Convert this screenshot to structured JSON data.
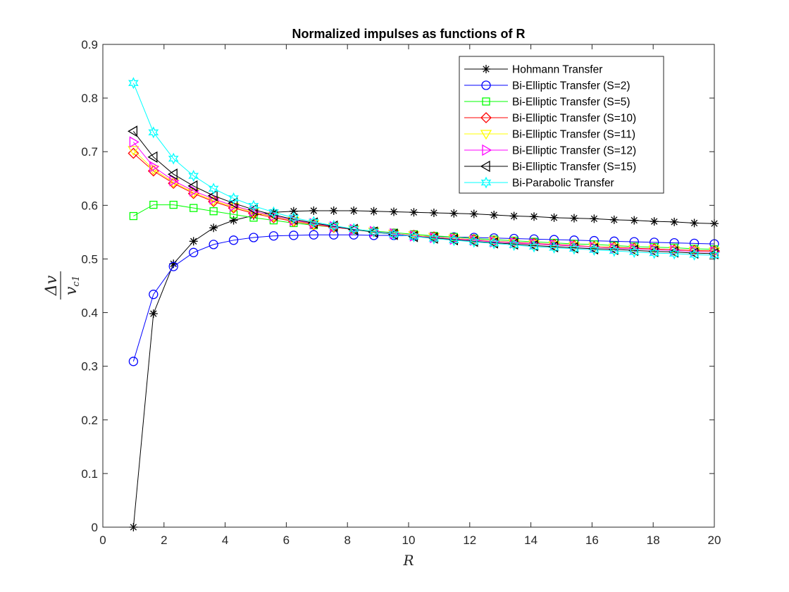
{
  "chart_data": {
    "type": "line",
    "title": "Normalized impulses as functions of R",
    "xlabel": "R",
    "ylabel": {
      "numerator": "Δv",
      "denominator_main": "v",
      "denominator_sub": "c1"
    },
    "xlim": [
      0,
      20
    ],
    "ylim": [
      0,
      0.9
    ],
    "xticks": [
      0,
      2,
      4,
      6,
      8,
      10,
      12,
      14,
      16,
      18,
      20
    ],
    "yticks": [
      0,
      0.1,
      0.2,
      0.3,
      0.4,
      0.5,
      0.6,
      0.7,
      0.8,
      0.9
    ],
    "grid": false,
    "legend_position": "top-right",
    "x": [
      1,
      1.655,
      2.31,
      2.966,
      3.621,
      4.276,
      4.931,
      5.586,
      6.241,
      6.897,
      7.552,
      8.207,
      8.862,
      9.517,
      10.172,
      10.828,
      11.483,
      12.138,
      12.793,
      13.448,
      14.103,
      14.759,
      15.414,
      16.069,
      16.724,
      17.379,
      18.034,
      18.69,
      19.345,
      20
    ],
    "series": [
      {
        "name": "Hohmann Transfer",
        "color": "#000000",
        "marker": "asterisk",
        "values": [
          0.0,
          0.398,
          0.491,
          0.533,
          0.558,
          0.572,
          0.581,
          0.587,
          0.589,
          0.59,
          0.59,
          0.59,
          0.589,
          0.588,
          0.587,
          0.586,
          0.585,
          0.584,
          0.582,
          0.58,
          0.579,
          0.577,
          0.576,
          0.575,
          0.573,
          0.572,
          0.57,
          0.569,
          0.567,
          0.566
        ]
      },
      {
        "name": "Bi-Elliptic Transfer (S=2)",
        "color": "#0000ff",
        "marker": "circle",
        "values": [
          0.309,
          0.434,
          0.486,
          0.512,
          0.527,
          0.535,
          0.54,
          0.543,
          0.544,
          0.545,
          0.545,
          0.545,
          0.544,
          0.544,
          0.543,
          0.542,
          0.541,
          0.54,
          0.539,
          0.538,
          0.537,
          0.536,
          0.535,
          0.534,
          0.533,
          0.532,
          0.531,
          0.53,
          0.529,
          0.528
        ]
      },
      {
        "name": "Bi-Elliptic Transfer (S=5)",
        "color": "#00ff00",
        "marker": "square",
        "values": [
          0.58,
          0.601,
          0.601,
          0.595,
          0.589,
          0.583,
          0.577,
          0.572,
          0.567,
          0.563,
          0.559,
          0.555,
          0.552,
          0.549,
          0.546,
          0.543,
          0.541,
          0.538,
          0.536,
          0.534,
          0.532,
          0.53,
          0.528,
          0.527,
          0.525,
          0.523,
          0.522,
          0.521,
          0.519,
          0.518
        ]
      },
      {
        "name": "Bi-Elliptic Transfer (S=10)",
        "color": "#ff0000",
        "marker": "diamond",
        "values": [
          0.697,
          0.664,
          0.641,
          0.622,
          0.607,
          0.595,
          0.585,
          0.577,
          0.57,
          0.564,
          0.559,
          0.555,
          0.551,
          0.547,
          0.544,
          0.541,
          0.538,
          0.536,
          0.533,
          0.531,
          0.529,
          0.527,
          0.525,
          0.523,
          0.522,
          0.52,
          0.519,
          0.517,
          0.516,
          0.515
        ]
      },
      {
        "name": "Bi-Elliptic Transfer (S=11)",
        "color": "#ffff00",
        "marker": "triangle-down",
        "values": [
          0.703,
          0.667,
          0.643,
          0.624,
          0.609,
          0.597,
          0.587,
          0.579,
          0.571,
          0.565,
          0.56,
          0.555,
          0.551,
          0.547,
          0.544,
          0.541,
          0.538,
          0.535,
          0.533,
          0.53,
          0.528,
          0.526,
          0.524,
          0.523,
          0.521,
          0.519,
          0.518,
          0.516,
          0.515,
          0.514
        ]
      },
      {
        "name": "Bi-Elliptic Transfer (S=12)",
        "color": "#ff00ff",
        "marker": "triangle-right",
        "values": [
          0.718,
          0.672,
          0.646,
          0.627,
          0.612,
          0.599,
          0.589,
          0.58,
          0.572,
          0.566,
          0.56,
          0.555,
          0.551,
          0.547,
          0.543,
          0.54,
          0.537,
          0.535,
          0.532,
          0.53,
          0.528,
          0.526,
          0.524,
          0.522,
          0.52,
          0.519,
          0.517,
          0.516,
          0.514,
          0.513
        ]
      },
      {
        "name": "Bi-Elliptic Transfer (S=15)",
        "color": "#000000",
        "marker": "triangle-left",
        "values": [
          0.738,
          0.69,
          0.658,
          0.636,
          0.618,
          0.604,
          0.592,
          0.582,
          0.574,
          0.567,
          0.561,
          0.555,
          0.55,
          0.546,
          0.542,
          0.539,
          0.536,
          0.533,
          0.53,
          0.528,
          0.525,
          0.523,
          0.521,
          0.519,
          0.518,
          0.516,
          0.514,
          0.513,
          0.511,
          0.51
        ]
      },
      {
        "name": "Bi-Parabolic Transfer",
        "color": "#00ffff",
        "marker": "hexagram",
        "values": [
          0.828,
          0.736,
          0.687,
          0.655,
          0.631,
          0.613,
          0.599,
          0.587,
          0.577,
          0.569,
          0.562,
          0.556,
          0.551,
          0.546,
          0.542,
          0.538,
          0.535,
          0.532,
          0.529,
          0.526,
          0.523,
          0.521,
          0.519,
          0.517,
          0.515,
          0.513,
          0.511,
          0.51,
          0.508,
          0.507
        ]
      }
    ]
  }
}
